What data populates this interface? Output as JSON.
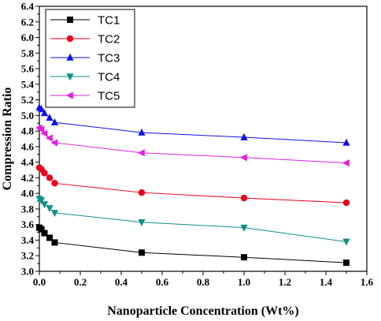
{
  "chart_data": {
    "type": "line",
    "title": "",
    "xlabel": "Nanoparticle Concentration (Wt%)",
    "ylabel": "Compression Ratio",
    "xlim": [
      0.0,
      1.6
    ],
    "ylim": [
      3.0,
      6.4
    ],
    "x_ticks": [
      "0.0",
      "0.2",
      "0.4",
      "0.6",
      "0.8",
      "1.0",
      "1.2",
      "1.4",
      "1.6"
    ],
    "y_ticks": [
      "3.0",
      "3.2",
      "3.4",
      "3.6",
      "3.8",
      "4.0",
      "4.2",
      "4.4",
      "4.6",
      "4.8",
      "5.0",
      "5.2",
      "5.4",
      "5.6",
      "5.8",
      "6.0",
      "6.2",
      "6.4"
    ],
    "grid": false,
    "legend_position": "top-left",
    "series": [
      {
        "name": "TC1",
        "color": "#000000",
        "marker": "square",
        "points": [
          [
            0.0,
            3.56
          ],
          [
            0.01,
            3.54
          ],
          [
            0.025,
            3.49
          ],
          [
            0.05,
            3.43
          ],
          [
            0.075,
            3.37
          ],
          [
            0.5,
            3.24
          ],
          [
            1.0,
            3.18
          ],
          [
            1.5,
            3.11
          ]
        ]
      },
      {
        "name": "TC2",
        "color": "#e8001c",
        "marker": "circle",
        "points": [
          [
            0.0,
            4.33
          ],
          [
            0.01,
            4.31
          ],
          [
            0.025,
            4.26
          ],
          [
            0.05,
            4.2
          ],
          [
            0.075,
            4.13
          ],
          [
            0.5,
            4.01
          ],
          [
            1.0,
            3.94
          ],
          [
            1.5,
            3.88
          ]
        ]
      },
      {
        "name": "TC3",
        "color": "#1010e8",
        "marker": "triangle-up",
        "points": [
          [
            0.0,
            5.1
          ],
          [
            0.01,
            5.08
          ],
          [
            0.025,
            5.03
          ],
          [
            0.05,
            4.97
          ],
          [
            0.075,
            4.91
          ],
          [
            0.5,
            4.78
          ],
          [
            1.0,
            4.72
          ],
          [
            1.5,
            4.65
          ]
        ]
      },
      {
        "name": "TC4",
        "color": "#0f8f8a",
        "marker": "triangle-down",
        "points": [
          [
            0.0,
            3.93
          ],
          [
            0.01,
            3.91
          ],
          [
            0.025,
            3.86
          ],
          [
            0.05,
            3.81
          ],
          [
            0.075,
            3.75
          ],
          [
            0.5,
            3.63
          ],
          [
            1.0,
            3.56
          ],
          [
            1.5,
            3.38
          ]
        ]
      },
      {
        "name": "TC5",
        "color": "#e020e0",
        "marker": "triangle-left",
        "points": [
          [
            0.0,
            4.84
          ],
          [
            0.01,
            4.82
          ],
          [
            0.025,
            4.77
          ],
          [
            0.05,
            4.71
          ],
          [
            0.075,
            4.65
          ],
          [
            0.5,
            4.52
          ],
          [
            1.0,
            4.46
          ],
          [
            1.5,
            4.39
          ]
        ]
      }
    ]
  }
}
